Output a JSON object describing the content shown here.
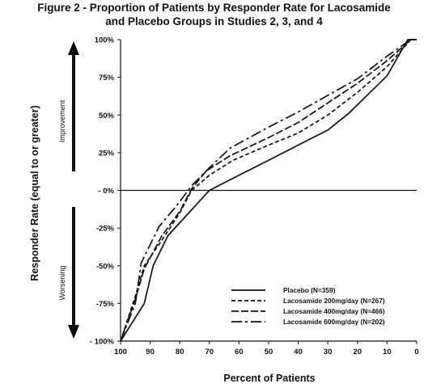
{
  "chart_data": {
    "type": "line",
    "title": "Figure 2 - Proportion of Patients by Responder Rate for Lacosamide",
    "subtitle": "and Placebo Groups in Studies 2, 3, and 4",
    "xlabel": "Percent of Patients",
    "ylabel": "Responder Rate (equal to or greater)",
    "xlim": [
      100,
      0
    ],
    "ylim": [
      -100,
      100
    ],
    "x_ticks": [
      "100",
      "90",
      "80",
      "70",
      "60",
      "50",
      "40",
      "30",
      "20",
      "10",
      "0"
    ],
    "y_ticks": [
      "- 100%",
      "-75%",
      "-50%",
      "-25%",
      "- 0%",
      "25%",
      "50%",
      "75%",
      "100%"
    ],
    "y_tick_values": [
      -100,
      -75,
      -50,
      -25,
      0,
      25,
      50,
      75,
      100
    ],
    "x_tick_values": [
      100,
      90,
      80,
      70,
      60,
      50,
      40,
      30,
      20,
      10,
      0
    ],
    "direction_labels": {
      "up": "Improvement",
      "down": "Worsening"
    },
    "grid": false,
    "legend_position": "bottom-right",
    "series": [
      {
        "name": "Placebo (N=359)",
        "dash": "solid",
        "x": [
          100,
          92,
          89,
          84,
          77,
          70,
          60,
          50,
          40,
          30,
          23,
          10,
          3,
          0
        ],
        "y": [
          -100,
          -75,
          -50,
          -30,
          -15,
          0,
          10,
          20,
          30,
          40,
          51,
          76,
          100,
          100
        ]
      },
      {
        "name": "Lacosamide 200mg/day  (N=267)",
        "dash": "short",
        "x": [
          100,
          95,
          92,
          86,
          80,
          76,
          70,
          62,
          50,
          40,
          30,
          20,
          10,
          2,
          0
        ],
        "y": [
          -100,
          -70,
          -50,
          -33,
          -15,
          0,
          10,
          20,
          30,
          38,
          50,
          65,
          82,
          100,
          100
        ]
      },
      {
        "name": "Lacosamide 400mg/day  (N=466)",
        "dash": "medium",
        "x": [
          100,
          95,
          92,
          86,
          80,
          76,
          71,
          63,
          50,
          40,
          30,
          20,
          10,
          2,
          0
        ],
        "y": [
          -100,
          -72,
          -52,
          -30,
          -14,
          1,
          13,
          23,
          35,
          45,
          58,
          71,
          86,
          100,
          100
        ]
      },
      {
        "name": "Lacosamide 600mg/day  (N=202)",
        "dash": "long",
        "x": [
          100,
          95,
          93,
          87,
          81,
          76,
          70,
          63,
          50,
          40,
          30,
          20,
          10,
          2,
          0
        ],
        "y": [
          -100,
          -75,
          -48,
          -24,
          -10,
          3,
          15,
          28,
          42,
          52,
          63,
          74,
          89,
          100,
          100
        ]
      }
    ]
  }
}
